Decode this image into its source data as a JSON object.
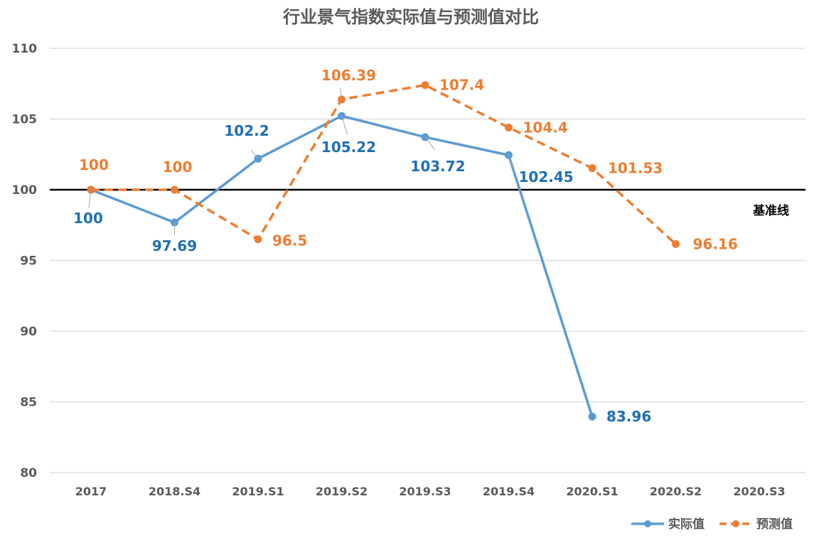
{
  "chart_data": {
    "type": "line",
    "title": "行业景气指数实际值与预测值对比",
    "categories": [
      "2017",
      "2018.S4",
      "2019.S1",
      "2019.S2",
      "2019.S3",
      "2019.S4",
      "2020.S1",
      "2020.S2",
      "2020.S3"
    ],
    "ylim": [
      80,
      110
    ],
    "yticks": [
      80,
      85,
      90,
      95,
      100,
      105,
      110
    ],
    "grid": true,
    "legend_position": "bottom-right",
    "baseline": {
      "value": 100,
      "label": "基准线",
      "color": "#000000"
    },
    "series": [
      {
        "name": "实际值",
        "color": "#5B9BD5",
        "label_color": "#1F6FB4",
        "style": "solid",
        "values": [
          100,
          97.69,
          102.2,
          105.22,
          103.72,
          102.45,
          83.96,
          null,
          null
        ],
        "labels": [
          "100",
          "97.69",
          "102.2",
          "105.22",
          "103.72",
          "102.45",
          "83.96",
          "",
          ""
        ]
      },
      {
        "name": "预测值",
        "color": "#ED7D31",
        "label_color": "#ED7D31",
        "style": "dashed",
        "values": [
          100,
          100,
          96.5,
          106.39,
          107.4,
          104.4,
          101.53,
          96.16,
          null
        ],
        "labels": [
          "100",
          "100",
          "96.5",
          "106.39",
          "107.4",
          "104.4",
          "101.53",
          "96.16",
          ""
        ]
      }
    ]
  }
}
